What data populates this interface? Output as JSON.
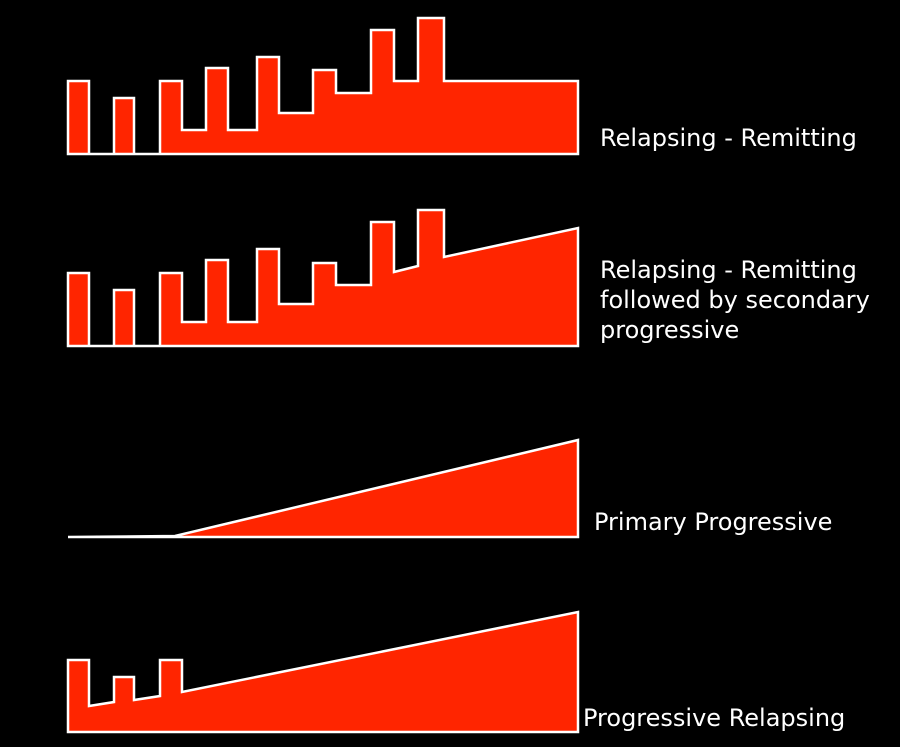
{
  "colors": {
    "background": "#000000",
    "fill": "#ff2500",
    "outline": "#ffffff",
    "text": "#ffffff"
  },
  "panels": [
    {
      "id": "relapsing-remitting",
      "label_lines": [
        "Relapsing - Remitting"
      ]
    },
    {
      "id": "relapsing-remitting-secondary-progressive",
      "label_lines": [
        "Relapsing - Remitting",
        "followed by secondary",
        "progressive"
      ]
    },
    {
      "id": "primary-progressive",
      "label_lines": [
        "Primary Progressive"
      ]
    },
    {
      "id": "progressive-relapsing",
      "label_lines": [
        "Progressive Relapsing"
      ]
    }
  ]
}
